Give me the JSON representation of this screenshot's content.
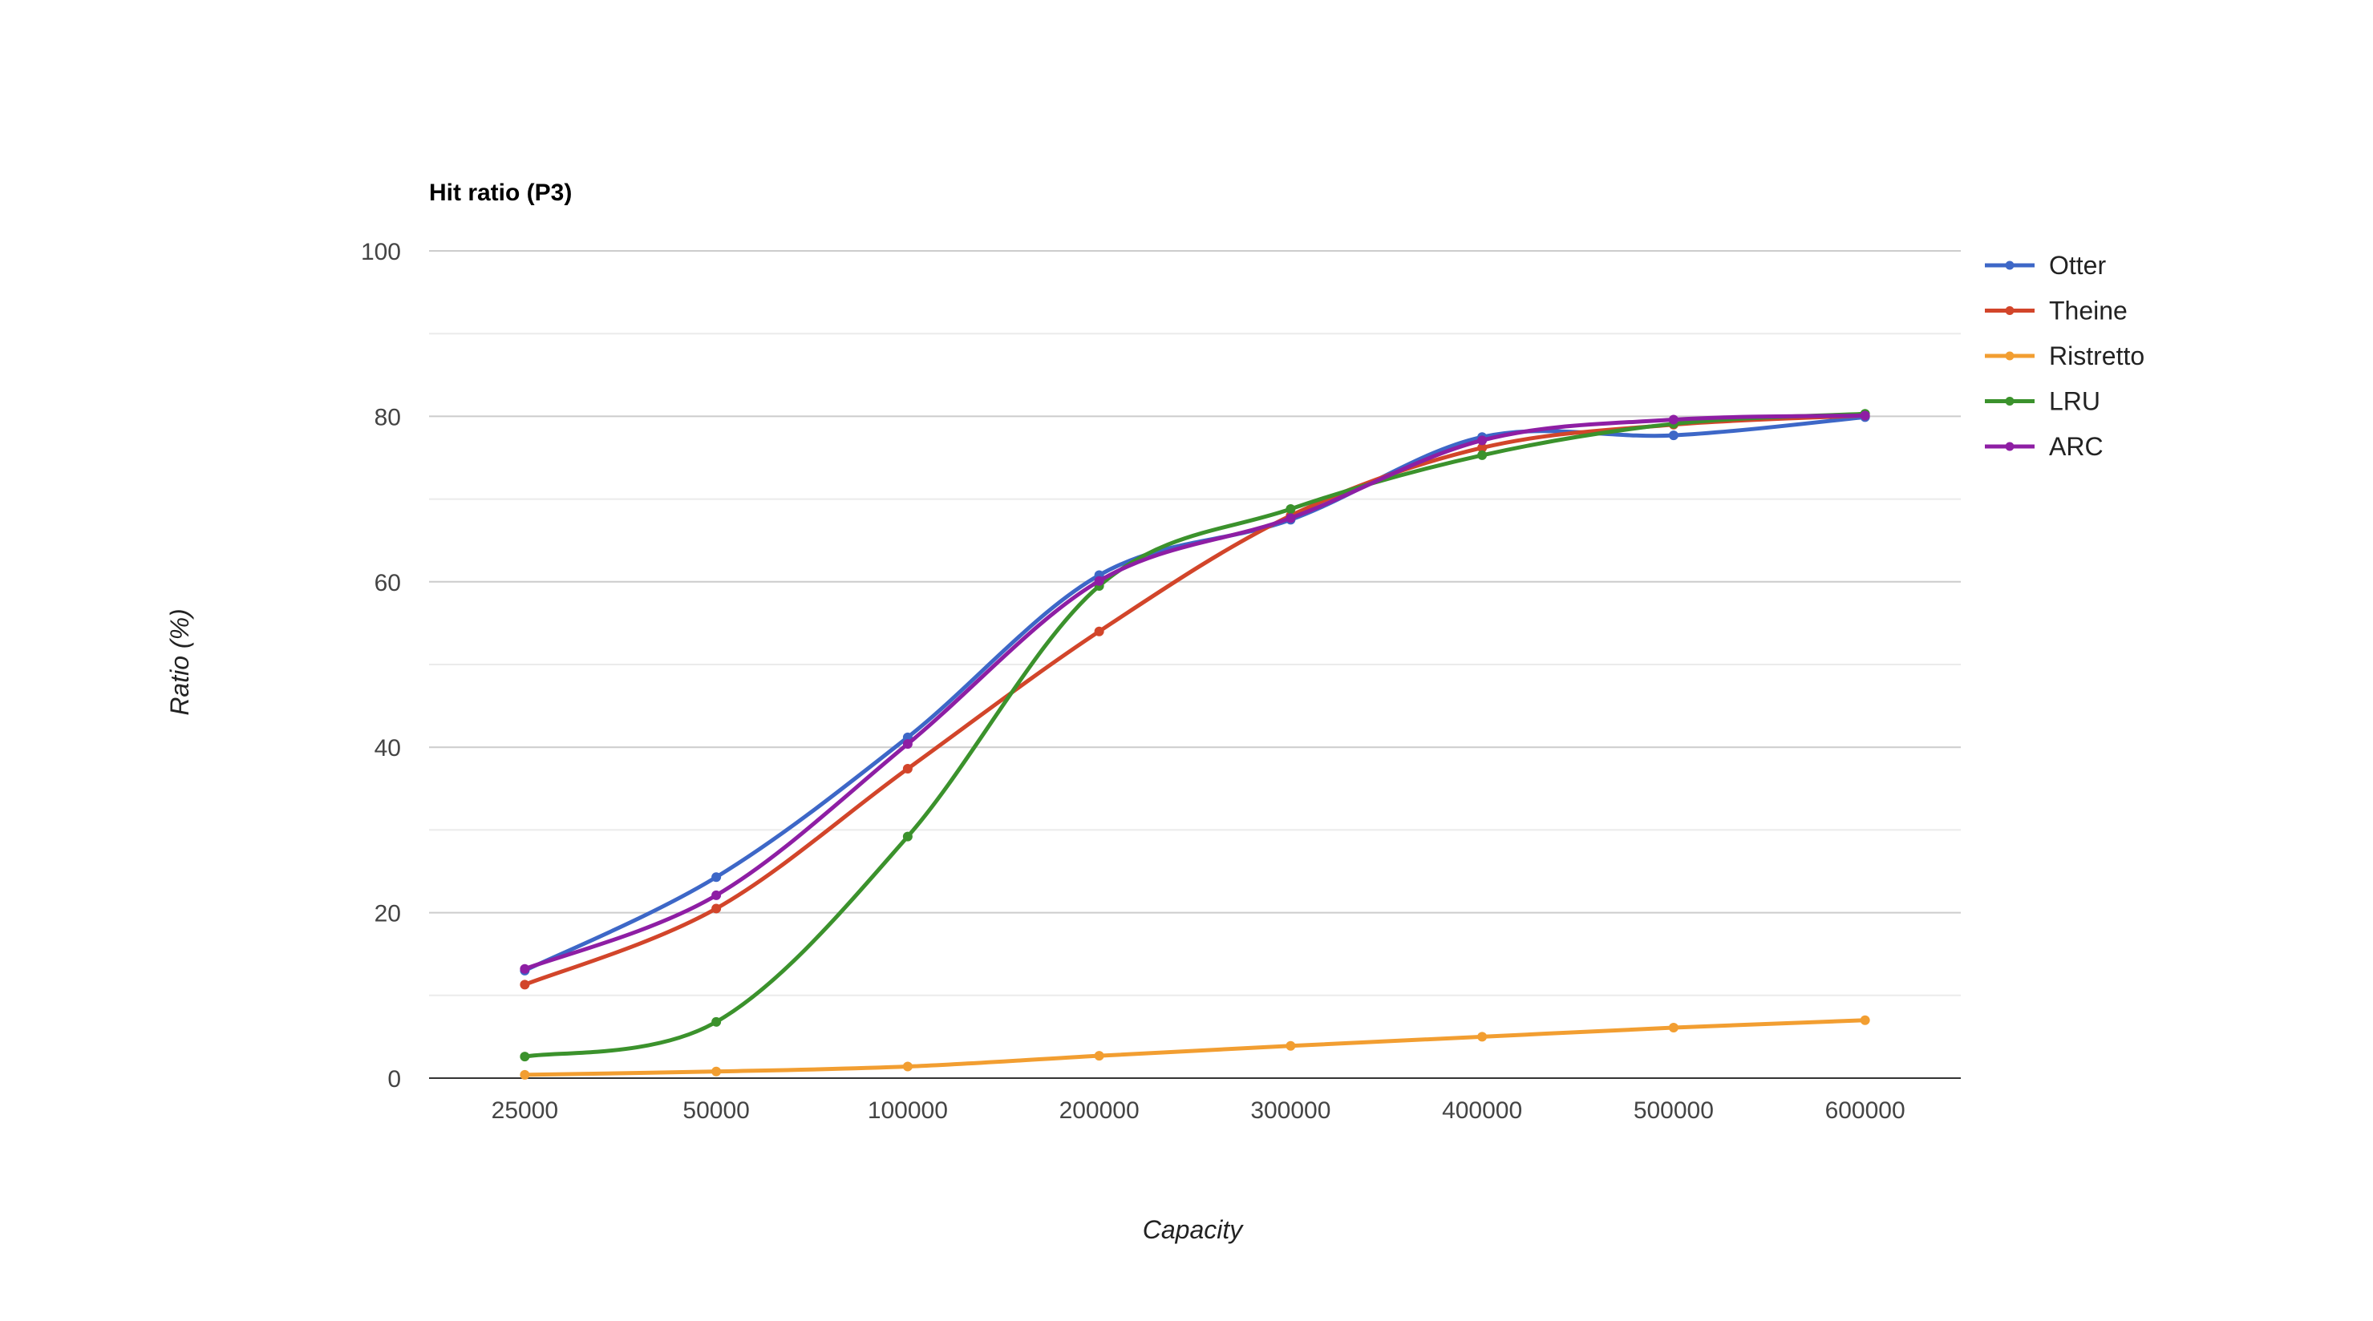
{
  "chart_data": {
    "type": "line",
    "title": "Hit ratio (P3)",
    "xlabel": "Capacity",
    "ylabel": "Ratio (%)",
    "categories": [
      "25000",
      "50000",
      "100000",
      "200000",
      "300000",
      "400000",
      "500000",
      "600000"
    ],
    "ylim": [
      0,
      100
    ],
    "yticks": [
      0,
      20,
      40,
      60,
      80,
      100
    ],
    "ytick_labels": [
      "0",
      "20",
      "40",
      "60",
      "80",
      "100"
    ],
    "grid": true,
    "legend_position": "right",
    "smooth": true,
    "series": [
      {
        "name": "Otter",
        "color": "#3d67c7",
        "values": [
          13.0,
          24.3,
          41.2,
          60.8,
          67.5,
          77.5,
          77.7,
          79.9
        ]
      },
      {
        "name": "Theine",
        "color": "#d2452a",
        "values": [
          11.3,
          20.5,
          37.4,
          54.0,
          68.0,
          76.2,
          79.0,
          80.1
        ]
      },
      {
        "name": "Ristretto",
        "color": "#f29e31",
        "values": [
          0.4,
          0.8,
          1.4,
          2.7,
          3.9,
          5.0,
          6.1,
          7.0
        ]
      },
      {
        "name": "LRU",
        "color": "#3b922c",
        "values": [
          2.6,
          6.8,
          29.2,
          59.5,
          68.8,
          75.3,
          79.1,
          80.3
        ]
      },
      {
        "name": "ARC",
        "color": "#8e1ea4",
        "values": [
          13.2,
          22.1,
          40.4,
          60.1,
          67.7,
          77.1,
          79.6,
          80.1
        ]
      }
    ]
  }
}
